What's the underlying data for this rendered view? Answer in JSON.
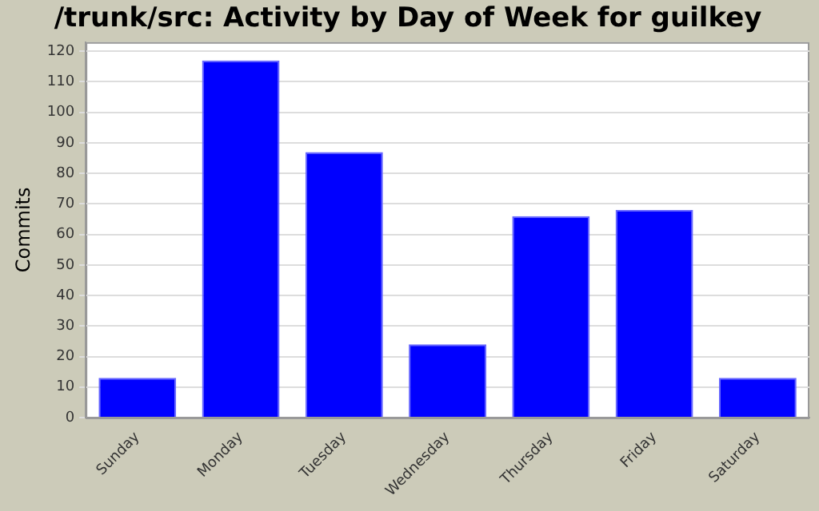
{
  "chart_data": {
    "type": "bar",
    "title": "/trunk/src: Activity by Day of Week for guilkey",
    "ylabel": "Commits",
    "categories": [
      "Sunday",
      "Monday",
      "Tuesday",
      "Wednesday",
      "Thursday",
      "Friday",
      "Saturday"
    ],
    "values": [
      13,
      117,
      87,
      24,
      66,
      68,
      13
    ],
    "color": "#0000ff",
    "ylim": [
      0,
      123
    ],
    "yticks": [
      0,
      10,
      20,
      30,
      40,
      50,
      60,
      70,
      80,
      90,
      100,
      110,
      120
    ],
    "grid": "y"
  }
}
